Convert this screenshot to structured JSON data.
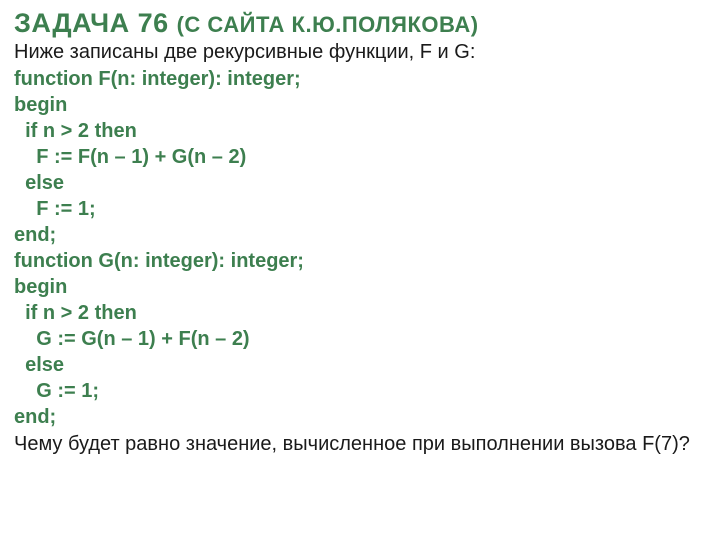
{
  "title_main": "ЗАДАЧА 76 ",
  "title_suffix": "(С САЙТА К.Ю.ПОЛЯКОВА)",
  "intro": "Ниже записаны две рекурсивные функции, F и G:",
  "code_lines": [
    "function F(n: integer): integer;",
    "begin",
    "  if n > 2 then",
    "    F := F(n – 1) + G(n – 2)",
    "  else",
    "    F := 1;",
    "end;",
    "function G(n: integer): integer;",
    "begin",
    "  if n > 2 then",
    "    G := G(n – 1) + F(n – 2)",
    "  else",
    "    G := 1;",
    "end;"
  ],
  "question": "Чему будет равно значение, вычисленное при выполнении вызова F(7)?",
  "colors": {
    "title": "#3d7f4f",
    "code": "#3d7f4f",
    "text": "#1a1a1a",
    "background": "#ffffff"
  },
  "fonts": {
    "title_size": 27,
    "title_suffix_size": 22,
    "body_size": 20,
    "code_size": 20
  }
}
